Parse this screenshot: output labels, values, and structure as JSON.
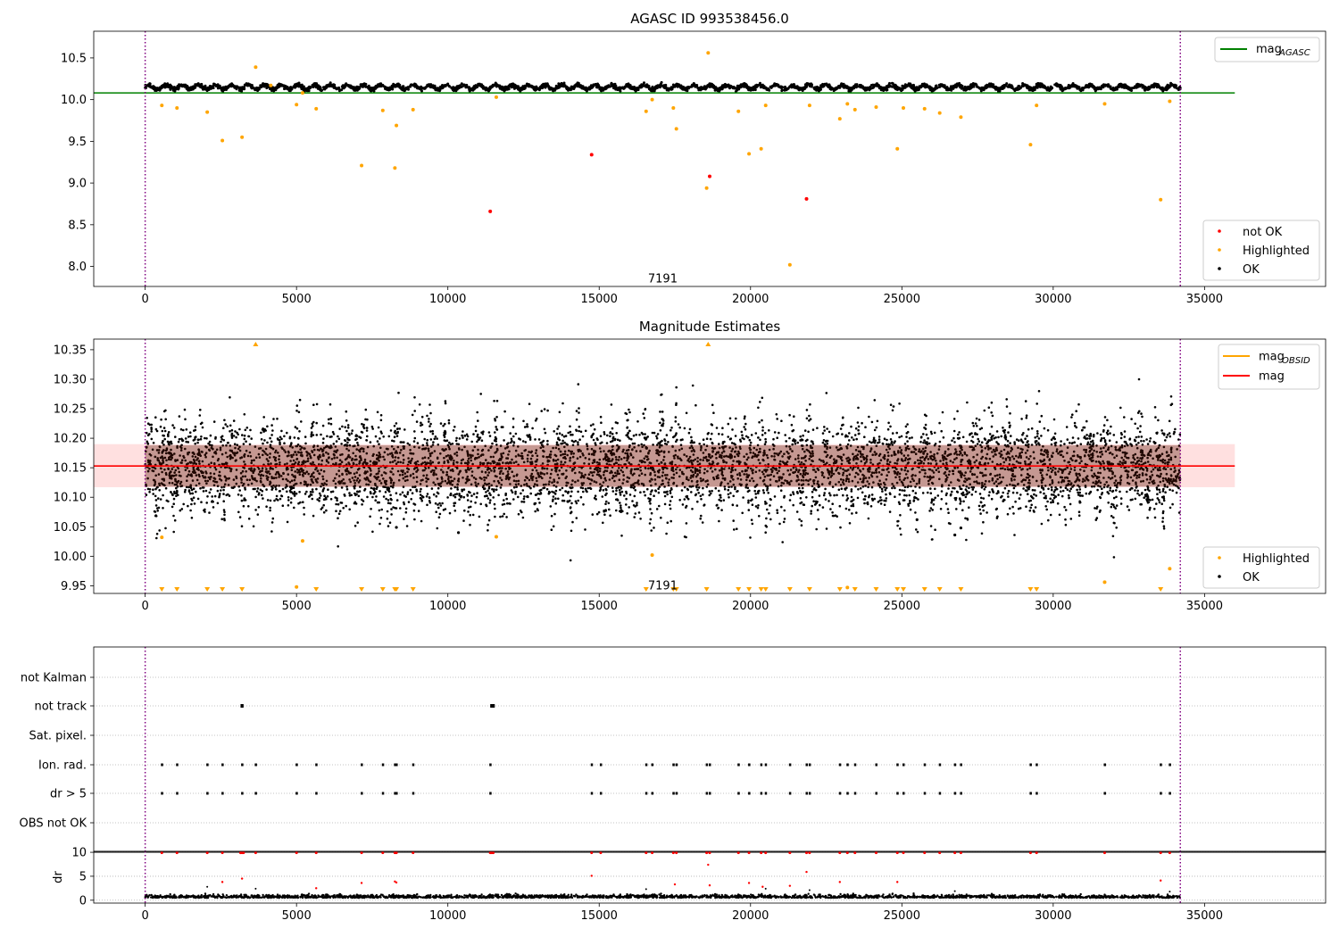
{
  "chart_data": [
    {
      "type": "scatter",
      "title": "AGASC ID 993538456.0",
      "xlim": [
        -1700,
        39000
      ],
      "ylim": [
        7.76,
        10.82
      ],
      "xticks": [
        0,
        5000,
        10000,
        15000,
        20000,
        25000,
        30000,
        35000
      ],
      "yticks": [
        8.0,
        8.5,
        9.0,
        9.5,
        10.0,
        10.5
      ],
      "annotation": {
        "text": "7191",
        "x": 17100,
        "y": 7.86
      },
      "vlines": [
        0,
        34200
      ],
      "legend_lines": [
        {
          "name_main": "mag",
          "name_sub": "AGASC",
          "color": "#008000"
        }
      ],
      "legend_points": [
        {
          "name": "not OK",
          "color": "#ff0000"
        },
        {
          "name": "Highlighted",
          "color": "#ffa500"
        },
        {
          "name": "OK",
          "color": "#000000"
        }
      ],
      "hlines": [
        {
          "y": 10.08,
          "x0": -1700,
          "x1": 36000,
          "color": "#008000"
        }
      ],
      "band": {
        "center": 10.15,
        "half_width": 0.045,
        "wave_amp": 0.05
      },
      "series": [
        {
          "role": "Highlighted",
          "color": "#ffa500",
          "points": [
            [
              550,
              9.93
            ],
            [
              1050,
              9.9
            ],
            [
              2050,
              9.85
            ],
            [
              2550,
              9.51
            ],
            [
              3200,
              9.55
            ],
            [
              3650,
              10.39
            ],
            [
              4150,
              10.17
            ],
            [
              5000,
              9.94
            ],
            [
              5200,
              10.08
            ],
            [
              5650,
              9.89
            ],
            [
              7150,
              9.21
            ],
            [
              7850,
              9.87
            ],
            [
              8250,
              9.18
            ],
            [
              8300,
              9.69
            ],
            [
              8850,
              9.88
            ],
            [
              11600,
              10.03
            ],
            [
              16550,
              9.86
            ],
            [
              16750,
              10.0
            ],
            [
              17450,
              9.9
            ],
            [
              17550,
              9.65
            ],
            [
              18550,
              8.94
            ],
            [
              18600,
              10.56
            ],
            [
              19600,
              9.86
            ],
            [
              19950,
              9.35
            ],
            [
              20350,
              9.41
            ],
            [
              20500,
              9.93
            ],
            [
              21300,
              8.02
            ],
            [
              21950,
              9.93
            ],
            [
              22950,
              9.77
            ],
            [
              23200,
              9.95
            ],
            [
              23450,
              9.88
            ],
            [
              24150,
              9.91
            ],
            [
              24850,
              9.41
            ],
            [
              25050,
              9.9
            ],
            [
              25750,
              9.89
            ],
            [
              26250,
              9.84
            ],
            [
              26950,
              9.79
            ],
            [
              29250,
              9.46
            ],
            [
              29450,
              9.93
            ],
            [
              31700,
              9.95
            ],
            [
              33550,
              8.8
            ],
            [
              33850,
              9.98
            ]
          ]
        },
        {
          "role": "not OK",
          "color": "#ff0000",
          "points": [
            [
              11400,
              8.66
            ],
            [
              14750,
              9.34
            ],
            [
              18650,
              9.08
            ],
            [
              21850,
              8.81
            ]
          ]
        }
      ]
    },
    {
      "type": "scatter",
      "title": "Magnitude Estimates",
      "xlim": [
        -1700,
        39000
      ],
      "ylim": [
        9.937,
        10.368
      ],
      "xticks": [
        0,
        5000,
        10000,
        15000,
        20000,
        25000,
        30000,
        35000
      ],
      "yticks": [
        9.95,
        10.0,
        10.05,
        10.1,
        10.15,
        10.2,
        10.25,
        10.3,
        10.35
      ],
      "annotation": {
        "text": "7191",
        "x": 17100,
        "y": 9.95
      },
      "vlines": [
        0,
        34200
      ],
      "legend_lines": [
        {
          "name_main": "mag",
          "name_sub": "OBSID",
          "color": "#ffa500"
        },
        {
          "name_main": "mag",
          "name_sub": "",
          "color": "#ff0000"
        }
      ],
      "legend_points": [
        {
          "name": "Highlighted",
          "color": "#ffa500"
        },
        {
          "name": "OK",
          "color": "#000000"
        }
      ],
      "hlines": [
        {
          "y": 10.153,
          "x0": -1700,
          "x1": 36000,
          "color": "#ff0000"
        }
      ],
      "shade": {
        "y0": 10.117,
        "y1": 10.19,
        "x0": -1700,
        "x1": 36000,
        "color": "#ffcccc"
      },
      "band": {
        "center": 10.15,
        "half_width": 0.04,
        "wave_amp": 0.045
      },
      "series": [
        {
          "role": "Highlighted",
          "color": "#ffa500",
          "points": [
            [
              550,
              10.032
            ],
            [
              5000,
              9.948
            ],
            [
              5200,
              10.026
            ],
            [
              11600,
              10.033
            ],
            [
              16750,
              10.002
            ],
            [
              23200,
              9.947
            ],
            [
              31700,
              9.956
            ],
            [
              33850,
              9.979
            ]
          ]
        },
        {
          "role": "OK",
          "color": "#000000",
          "points": [
            [
              10350,
              10.04
            ],
            [
              8300,
              10.049
            ],
            [
              26750,
              10.036
            ],
            [
              26950,
              10.048
            ],
            [
              25500,
              10.062
            ]
          ]
        }
      ],
      "clipped_low_x": [
        550,
        1050,
        2050,
        2550,
        3200,
        5650,
        7150,
        7850,
        8250,
        8300,
        8850,
        16550,
        17450,
        17550,
        18550,
        19600,
        19950,
        20350,
        20500,
        21300,
        21950,
        22950,
        23450,
        24150,
        24850,
        25050,
        25750,
        26250,
        26950,
        29250,
        29450,
        33550
      ],
      "clipped_high_x": [
        3650,
        18600
      ]
    },
    {
      "type": "scatter",
      "title": "",
      "xlim": [
        -1700,
        39000
      ],
      "categories": [
        "not Kalman",
        "not track",
        "Sat. pixel.",
        "Ion. rad.",
        "dr > 5",
        "OBS not OK"
      ],
      "vlines": [
        0,
        34200
      ],
      "flags": {
        "not track": [
          [
            3150,
            3250
          ],
          [
            11400,
            11550
          ]
        ],
        "Ion. rad.": [
          550,
          1050,
          2050,
          2550,
          3200,
          3650,
          5000,
          5650,
          7150,
          7850,
          8250,
          8300,
          8850,
          11400,
          14750,
          15050,
          16550,
          16750,
          17450,
          17550,
          18550,
          18650,
          19600,
          19950,
          20350,
          20500,
          21300,
          21850,
          21950,
          22950,
          23200,
          23450,
          24150,
          24850,
          25050,
          25750,
          26250,
          26750,
          26950,
          29250,
          29450,
          31700,
          33550,
          33850
        ],
        "dr > 5": [
          550,
          1050,
          2050,
          2550,
          3200,
          3650,
          5000,
          5650,
          7150,
          7850,
          8250,
          8300,
          8850,
          11400,
          14750,
          15050,
          16550,
          16750,
          17450,
          17550,
          18550,
          18650,
          19600,
          19950,
          20350,
          20500,
          21300,
          21850,
          21950,
          22950,
          23200,
          23450,
          24150,
          24850,
          25050,
          25750,
          26250,
          26750,
          26950,
          29250,
          29450,
          31700,
          33550,
          33850
        ]
      }
    },
    {
      "type": "scatter",
      "title": "",
      "ylabel": "dr",
      "xlim": [
        -1700,
        39000
      ],
      "ylim": [
        -0.6,
        10.2
      ],
      "xticks": [
        0,
        5000,
        10000,
        15000,
        20000,
        25000,
        30000,
        35000
      ],
      "yticks": [
        0,
        5,
        10
      ],
      "vlines": [
        0,
        34200
      ],
      "hline_top": 10,
      "red_at_top": [
        550,
        1050,
        2050,
        2550,
        3150,
        3200,
        3250,
        3650,
        5000,
        5650,
        7150,
        7850,
        8250,
        8300,
        8850,
        11400,
        11450,
        11500,
        14750,
        15050,
        16550,
        16750,
        17450,
        17550,
        18550,
        18650,
        19600,
        19950,
        20350,
        20500,
        21300,
        21850,
        21950,
        22950,
        23200,
        23450,
        24150,
        24850,
        25050,
        25750,
        26250,
        26750,
        26950,
        29250,
        29450,
        31700,
        33550,
        33850
      ],
      "red_points": [
        [
          2550,
          3.8
        ],
        [
          3200,
          4.5
        ],
        [
          5650,
          2.5
        ],
        [
          7150,
          3.6
        ],
        [
          8250,
          3.9
        ],
        [
          8300,
          3.7
        ],
        [
          14750,
          5.1
        ],
        [
          17500,
          3.3
        ],
        [
          18600,
          7.4
        ],
        [
          18650,
          3.1
        ],
        [
          19950,
          3.6
        ],
        [
          20400,
          2.8
        ],
        [
          21300,
          3.0
        ],
        [
          21850,
          5.9
        ],
        [
          22950,
          3.8
        ],
        [
          24850,
          3.8
        ],
        [
          33550,
          4.1
        ]
      ],
      "black_points": [
        [
          2050,
          2.8
        ],
        [
          3650,
          2.4
        ],
        [
          16550,
          2.3
        ],
        [
          20500,
          2.4
        ],
        [
          21950,
          2.1
        ],
        [
          26750,
          1.9
        ],
        [
          33850,
          1.8
        ]
      ]
    }
  ]
}
